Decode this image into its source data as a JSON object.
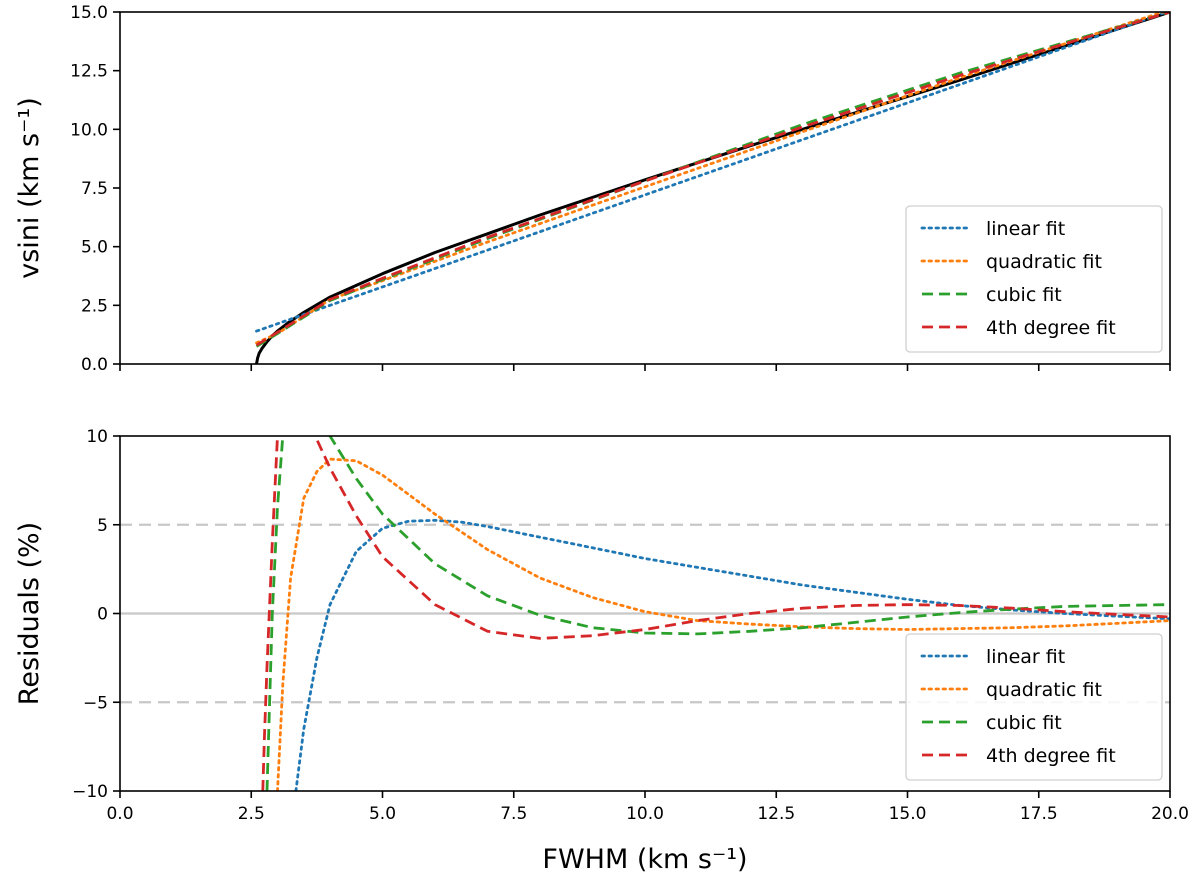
{
  "chart_data": [
    {
      "type": "line",
      "panel": "top",
      "xlabel": "",
      "ylabel": "vsini (km s⁻¹)",
      "xlim": [
        0,
        20
      ],
      "ylim": [
        0,
        15
      ],
      "yticks": [
        "0.0",
        "2.5",
        "5.0",
        "7.5",
        "10.0",
        "12.5",
        "15.0"
      ],
      "xtick_labels_visible": false,
      "legend_position": "lower right",
      "series": [
        {
          "name": "",
          "color": "#000000",
          "style": "solid",
          "x": [
            2.6,
            2.62,
            2.65,
            2.7,
            2.8,
            2.9,
            3.0,
            3.2,
            3.5,
            4.0,
            4.5,
            5.0,
            6.0,
            7.0,
            8.0,
            10.0,
            12.0,
            14.0,
            16.0,
            18.0,
            20.0
          ],
          "y": [
            0.0,
            0.25,
            0.45,
            0.65,
            0.95,
            1.2,
            1.4,
            1.75,
            2.2,
            2.85,
            3.35,
            3.85,
            4.75,
            5.55,
            6.35,
            7.85,
            9.3,
            10.7,
            12.1,
            13.55,
            15.0
          ]
        },
        {
          "name": "linear fit",
          "color": "#1f77b4",
          "style": "dotted",
          "x": [
            2.6,
            20.0
          ],
          "y": [
            1.4,
            15.05
          ]
        },
        {
          "name": "quadratic fit",
          "color": "#ff7f0e",
          "style": "dotted",
          "x": [
            2.6,
            3.0,
            4.0,
            5.0,
            7.0,
            10.0,
            13.0,
            16.0,
            20.0
          ],
          "y": [
            0.9,
            1.3,
            2.75,
            3.55,
            5.2,
            7.55,
            9.9,
            12.2,
            15.1
          ]
        },
        {
          "name": "cubic fit",
          "color": "#2ca02c",
          "style": "dashed",
          "x": [
            2.6,
            3.0,
            4.0,
            5.0,
            7.0,
            10.0,
            13.0,
            16.0,
            20.0
          ],
          "y": [
            0.75,
            1.3,
            2.7,
            3.6,
            5.35,
            7.8,
            10.2,
            12.4,
            15.0
          ]
        },
        {
          "name": "4th degree fit",
          "color": "#d62728",
          "style": "dashed",
          "x": [
            2.6,
            3.0,
            4.0,
            5.0,
            7.0,
            10.0,
            13.0,
            16.0,
            20.0
          ],
          "y": [
            0.8,
            1.35,
            2.75,
            3.65,
            5.4,
            7.8,
            10.1,
            12.3,
            15.0
          ]
        }
      ]
    },
    {
      "type": "line",
      "panel": "bottom",
      "xlabel": "FWHM (km s⁻¹)",
      "ylabel": "Residuals (%)",
      "xlim": [
        0,
        20
      ],
      "ylim": [
        -10,
        10
      ],
      "xticks": [
        "0.0",
        "2.5",
        "5.0",
        "7.5",
        "10.0",
        "12.5",
        "15.0",
        "17.5",
        "20.0"
      ],
      "yticks": [
        "−10",
        "−5",
        "0",
        "5",
        "10"
      ],
      "reference_lines": [
        5,
        0,
        -5
      ],
      "legend_position": "lower right",
      "series": [
        {
          "name": "linear fit",
          "color": "#1f77b4",
          "style": "dotted",
          "x": [
            3.35,
            3.5,
            3.75,
            4.0,
            4.5,
            5.0,
            5.5,
            6.0,
            6.5,
            7.0,
            8.0,
            9.0,
            10.0,
            11.0,
            12.0,
            13.0,
            14.0,
            15.0,
            16.0,
            17.0,
            18.0,
            19.0,
            20.0
          ],
          "y": [
            -10.0,
            -6.5,
            -2.5,
            0.5,
            3.5,
            4.8,
            5.2,
            5.25,
            5.15,
            4.9,
            4.3,
            3.7,
            3.1,
            2.6,
            2.1,
            1.6,
            1.2,
            0.8,
            0.45,
            0.2,
            0.0,
            -0.15,
            -0.3
          ]
        },
        {
          "name": "quadratic fit",
          "color": "#ff7f0e",
          "style": "dotted",
          "x": [
            3.0,
            3.1,
            3.25,
            3.5,
            3.75,
            4.0,
            4.5,
            5.0,
            5.5,
            6.0,
            7.0,
            8.0,
            9.0,
            10.0,
            11.0,
            12.0,
            13.0,
            14.0,
            15.0,
            16.0,
            17.0,
            18.0,
            19.0,
            20.0
          ],
          "y": [
            -10.0,
            -4.0,
            2.0,
            6.5,
            8.0,
            8.7,
            8.6,
            7.8,
            6.7,
            5.6,
            3.6,
            2.0,
            0.9,
            0.1,
            -0.4,
            -0.6,
            -0.75,
            -0.85,
            -0.9,
            -0.85,
            -0.8,
            -0.7,
            -0.55,
            -0.4
          ]
        },
        {
          "name": "cubic fit",
          "color": "#2ca02c",
          "style": "dashed",
          "x": [
            2.8,
            2.85,
            2.9,
            3.0,
            3.1,
            3.2,
            3.3,
            3.5,
            4.0,
            4.5,
            5.0,
            6.0,
            7.0,
            8.0,
            9.0,
            10.0,
            11.0,
            12.0,
            13.0,
            14.0,
            15.0,
            16.0,
            17.0,
            18.0,
            19.0,
            20.0
          ],
          "y": [
            -10.0,
            -5.0,
            0.0,
            6.0,
            10.0,
            12.0,
            13.0,
            12.8,
            10.0,
            7.6,
            5.6,
            2.8,
            1.0,
            -0.1,
            -0.8,
            -1.1,
            -1.15,
            -1.0,
            -0.8,
            -0.5,
            -0.2,
            0.05,
            0.25,
            0.4,
            0.45,
            0.5
          ]
        },
        {
          "name": "4th degree fit",
          "color": "#d62728",
          "style": "dashed",
          "x": [
            2.72,
            2.75,
            2.8,
            2.9,
            3.0,
            3.1,
            3.25,
            3.5,
            3.75,
            4.0,
            4.5,
            5.0,
            6.0,
            7.0,
            8.0,
            9.0,
            10.0,
            11.0,
            12.0,
            13.0,
            14.0,
            15.0,
            16.0,
            17.0,
            18.0,
            19.0,
            20.0
          ],
          "y": [
            -10.0,
            -7.0,
            -3.0,
            4.0,
            10.0,
            12.0,
            12.5,
            11.0,
            9.8,
            8.2,
            5.5,
            3.2,
            0.5,
            -1.0,
            -1.4,
            -1.25,
            -0.9,
            -0.4,
            0.0,
            0.3,
            0.45,
            0.5,
            0.45,
            0.3,
            0.1,
            -0.05,
            -0.2
          ]
        }
      ]
    }
  ]
}
